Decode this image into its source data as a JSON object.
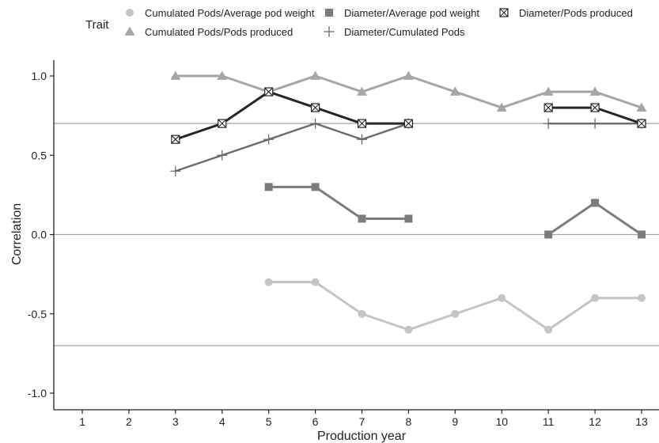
{
  "chart_data": {
    "type": "line",
    "xlabel": "Production year",
    "ylabel": "Correlation",
    "xlim": [
      1,
      13
    ],
    "ylim": [
      -1.0,
      1.0
    ],
    "x_ticks": [
      "1",
      "2",
      "3",
      "4",
      "5",
      "6",
      "7",
      "8",
      "9",
      "10",
      "11",
      "12",
      "13"
    ],
    "y_ticks": [
      "1.0",
      "0.5",
      "0.0",
      "-0.5",
      "-1.0"
    ],
    "grid": false,
    "reference_lines": [
      0.7,
      0.0,
      -0.7
    ],
    "legend": {
      "title": "Trait",
      "placement": "top"
    },
    "series": [
      {
        "name": "Cumulated Pods/Average pod weight",
        "marker": "circle",
        "color": "#c4c4c4",
        "segments": [
          [
            [
              5,
              -0.3
            ],
            [
              6,
              -0.3
            ],
            [
              7,
              -0.5
            ],
            [
              8,
              -0.6
            ],
            [
              9,
              -0.5
            ],
            [
              10,
              -0.4
            ],
            [
              11,
              -0.6
            ],
            [
              12,
              -0.4
            ],
            [
              13,
              -0.4
            ]
          ]
        ]
      },
      {
        "name": "Cumulated Pods/Pods produced",
        "marker": "triangle",
        "color": "#a6a6a6",
        "segments": [
          [
            [
              3,
              1.0
            ],
            [
              4,
              1.0
            ],
            [
              5,
              0.9
            ],
            [
              6,
              1.0
            ],
            [
              7,
              0.9
            ],
            [
              8,
              1.0
            ],
            [
              9,
              0.9
            ],
            [
              10,
              0.8
            ],
            [
              11,
              0.9
            ],
            [
              12,
              0.9
            ],
            [
              13,
              0.8
            ]
          ]
        ]
      },
      {
        "name": "Diameter/Average pod weight",
        "marker": "square",
        "color": "#7c7c7c",
        "segments": [
          [
            [
              5,
              0.3
            ],
            [
              6,
              0.3
            ],
            [
              7,
              0.1
            ],
            [
              8,
              0.1
            ]
          ],
          [
            [
              11,
              0.0
            ],
            [
              12,
              0.2
            ],
            [
              13,
              0.0
            ]
          ]
        ]
      },
      {
        "name": "Diameter/Cumulated Pods",
        "marker": "plus",
        "color": "#6b6b6b",
        "segments": [
          [
            [
              3,
              0.4
            ],
            [
              4,
              0.5
            ],
            [
              5,
              0.6
            ],
            [
              6,
              0.7
            ],
            [
              7,
              0.6
            ],
            [
              8,
              0.7
            ]
          ],
          [
            [
              11,
              0.7
            ],
            [
              12,
              0.7
            ],
            [
              13,
              0.7
            ]
          ]
        ]
      },
      {
        "name": "Diameter/Pods produced",
        "marker": "boxx",
        "color": "#262626",
        "segments": [
          [
            [
              3,
              0.6
            ],
            [
              4,
              0.7
            ],
            [
              5,
              0.9
            ],
            [
              6,
              0.8
            ],
            [
              7,
              0.7
            ],
            [
              8,
              0.7
            ]
          ],
          [
            [
              11,
              0.8
            ],
            [
              12,
              0.8
            ],
            [
              13,
              0.7
            ]
          ]
        ]
      }
    ]
  }
}
